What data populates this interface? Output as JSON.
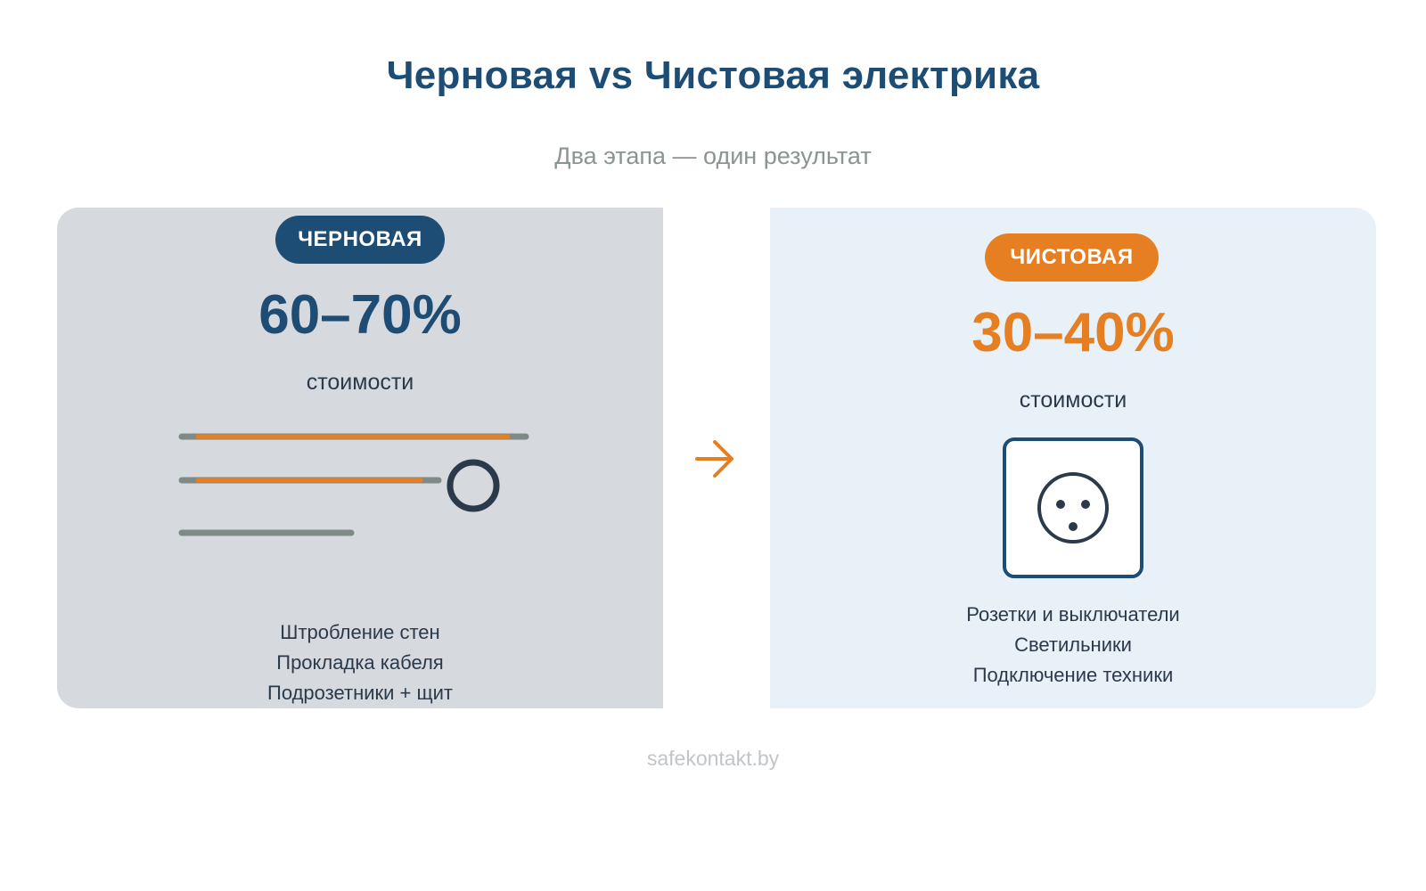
{
  "title": "Черновая vs Чистовая электрика",
  "subtitle": "Два этапа — один результат",
  "rough": {
    "badge": "ЧЕРНОВАЯ",
    "percent": "60–70%",
    "cost_label": "стоимости",
    "items": [
      "Штробление стен",
      "Прокладка кабеля",
      "Подрозетники + щит"
    ],
    "icon": "cable-lines-icon"
  },
  "finish": {
    "badge": "ЧИСТОВАЯ",
    "percent": "30–40%",
    "cost_label": "стоимости",
    "items": [
      "Розетки и выключатели",
      "Светильники",
      "Подключение техники"
    ],
    "icon": "power-socket-icon"
  },
  "footer": "safekontakt.by",
  "colors": {
    "primary": "#1d4d74",
    "accent": "#e67e22",
    "rough_bg": "#d6d9dd",
    "finish_bg": "#e9f1f8",
    "cable_gray": "#7f8a86"
  }
}
